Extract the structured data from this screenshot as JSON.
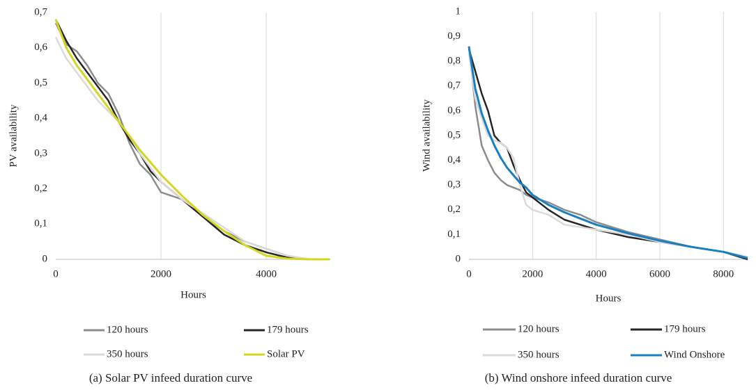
{
  "chart_data": [
    {
      "type": "line",
      "caption": "(a) Solar PV infeed duration curve",
      "xlabel": "Hours",
      "ylabel": "PV availability",
      "x": [
        0,
        200,
        400,
        600,
        800,
        1000,
        1200,
        1400,
        1600,
        1800,
        2000,
        2400,
        2800,
        3200,
        3600,
        4000,
        4400,
        4800,
        5200
      ],
      "series": [
        {
          "name": "120 hours",
          "color": "#8c8c8c",
          "values": [
            0.67,
            0.61,
            0.59,
            0.55,
            0.5,
            0.47,
            0.41,
            0.33,
            0.27,
            0.24,
            0.19,
            0.17,
            0.12,
            0.08,
            0.05,
            0.03,
            0.01,
            0,
            0
          ]
        },
        {
          "name": "179 hours",
          "color": "#262626",
          "values": [
            0.68,
            0.62,
            0.57,
            0.53,
            0.49,
            0.45,
            0.39,
            0.34,
            0.3,
            0.25,
            0.22,
            0.17,
            0.12,
            0.07,
            0.04,
            0.02,
            0.005,
            0,
            0
          ]
        },
        {
          "name": "350 hours",
          "color": "#dadada",
          "values": [
            0.63,
            0.57,
            0.53,
            0.49,
            0.45,
            0.42,
            0.39,
            0.35,
            0.3,
            0.26,
            0.22,
            0.17,
            0.13,
            0.09,
            0.05,
            0.03,
            0.01,
            0.001,
            0
          ]
        },
        {
          "name": "Solar PV",
          "color": "#d4d71f",
          "values": [
            0.68,
            0.6,
            0.55,
            0.51,
            0.47,
            0.43,
            0.39,
            0.35,
            0.31,
            0.275,
            0.24,
            0.18,
            0.125,
            0.08,
            0.04,
            0.01,
            0.002,
            0,
            0
          ]
        }
      ],
      "xlim": [
        0,
        5230
      ],
      "xticks": [
        0,
        2000,
        4000
      ],
      "ylim": [
        0,
        0.7
      ],
      "yticks": [
        0,
        {
          "value": 0.1,
          "label": "0,1"
        },
        {
          "value": 0.2,
          "label": "0,2"
        },
        {
          "value": 0.3,
          "label": "0,3"
        },
        {
          "value": 0.4,
          "label": "0,4"
        },
        {
          "value": 0.5,
          "label": "0,5"
        },
        {
          "value": 0.6,
          "label": "0,6"
        },
        {
          "value": 0.7,
          "label": "0,7"
        }
      ],
      "grid": true,
      "legend": "bottom"
    },
    {
      "type": "line",
      "caption": "(b) Wind onshore infeed duration curve",
      "xlabel": "Hours",
      "ylabel": "Wind availability",
      "x": [
        0,
        200,
        400,
        600,
        800,
        1000,
        1200,
        1400,
        1600,
        1800,
        2000,
        2500,
        3000,
        3500,
        4000,
        5000,
        6000,
        7000,
        8000,
        8760
      ],
      "series": [
        {
          "name": "120 hours",
          "color": "#8c8c8c",
          "values": [
            0.86,
            0.62,
            0.46,
            0.4,
            0.35,
            0.32,
            0.3,
            0.29,
            0.28,
            0.26,
            0.25,
            0.23,
            0.2,
            0.18,
            0.15,
            0.11,
            0.08,
            0.05,
            0.03,
            0
          ]
        },
        {
          "name": "179 hours",
          "color": "#262626",
          "values": [
            0.85,
            0.76,
            0.67,
            0.6,
            0.5,
            0.47,
            0.45,
            0.38,
            0.32,
            0.27,
            0.25,
            0.2,
            0.16,
            0.14,
            0.12,
            0.09,
            0.07,
            0.05,
            0.03,
            0
          ]
        },
        {
          "name": "350 hours",
          "color": "#dadada",
          "values": [
            0.83,
            0.65,
            0.57,
            0.5,
            0.48,
            0.47,
            0.45,
            0.41,
            0.3,
            0.22,
            0.2,
            0.18,
            0.14,
            0.13,
            0.12,
            0.1,
            0.07,
            0.05,
            0.03,
            0.01
          ]
        },
        {
          "name": "Wind Onshore",
          "color": "#1a7fc0",
          "values": [
            0.86,
            0.69,
            0.59,
            0.52,
            0.46,
            0.41,
            0.37,
            0.34,
            0.31,
            0.29,
            0.26,
            0.22,
            0.19,
            0.165,
            0.14,
            0.105,
            0.075,
            0.05,
            0.03,
            0.005
          ]
        }
      ],
      "xlim": [
        0,
        8760
      ],
      "xticks": [
        0,
        2000,
        4000,
        6000,
        8000
      ],
      "ylim": [
        0,
        1
      ],
      "yticks": [
        0,
        {
          "value": 0.1,
          "label": "0,1"
        },
        {
          "value": 0.2,
          "label": "0,2"
        },
        {
          "value": 0.3,
          "label": "0,3"
        },
        {
          "value": 0.4,
          "label": "0,4"
        },
        {
          "value": 0.5,
          "label": "0,5"
        },
        {
          "value": 0.6,
          "label": "0,6"
        },
        {
          "value": 0.7,
          "label": "0,7"
        },
        {
          "value": 0.8,
          "label": "0,8"
        },
        {
          "value": 0.9,
          "label": "0,9"
        },
        1
      ],
      "grid": true,
      "legend": "bottom"
    }
  ]
}
